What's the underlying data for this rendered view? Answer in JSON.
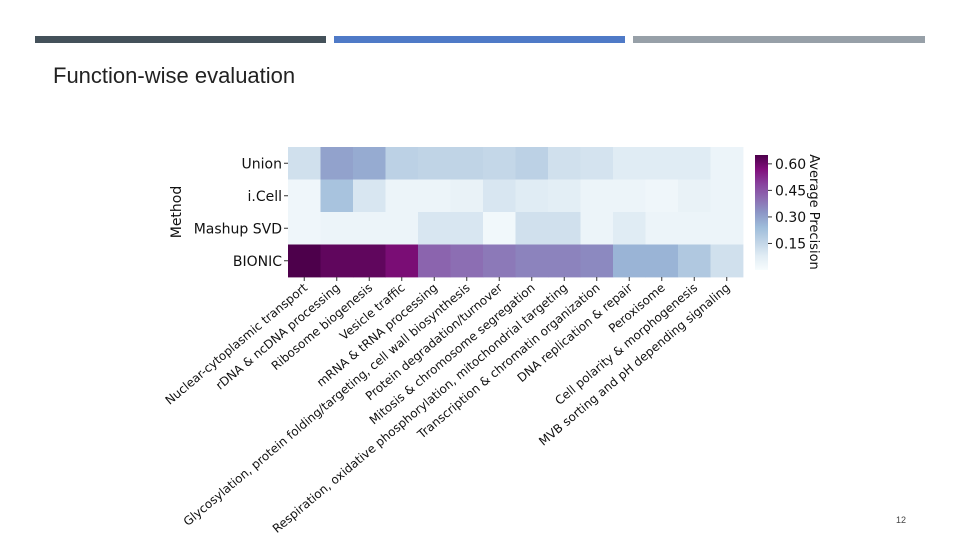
{
  "slide": {
    "title": "Function-wise evaluation",
    "page_number": "12",
    "bar_colors": [
      "#44515a",
      "#4f7ac7",
      "#97a0a8"
    ]
  },
  "chart_data": {
    "type": "heatmap",
    "title": "",
    "ylabel": "Method",
    "xlabel": "",
    "colorbar_label": "Average Precision",
    "colorbar_ticks": [
      "0.60",
      "0.45",
      "0.30",
      "0.15"
    ],
    "colorbar_tick_values": [
      0.6,
      0.45,
      0.3,
      0.15
    ],
    "value_range": [
      0.0,
      0.65
    ],
    "colormap": "BuPu",
    "rows": [
      "Union",
      "i.Cell",
      "Mashup SVD",
      "BIONIC"
    ],
    "columns": [
      "Nuclear-cytoplasmic transport",
      "rDNA & ncDNA processing",
      "Ribosome biogenesis",
      "Vesicle traffic",
      "mRNA & tRNA processing",
      "Glycosylation, protein folding/targeting, cell wall biosynthesis",
      "Protein degradation/turnover",
      "Mitosis & chromosome segregation",
      "Respiration, oxidative phosphorylation, mitochondrial targeting",
      "Transcription & chromatin organization",
      "DNA replication & repair",
      "Peroxisome",
      "Cell polarity & morphogenesis",
      "MVB sorting and pH depending signaling"
    ],
    "values": [
      [
        0.12,
        0.3,
        0.28,
        0.17,
        0.16,
        0.16,
        0.15,
        0.17,
        0.12,
        0.11,
        0.08,
        0.08,
        0.08,
        0.04
      ],
      [
        0.03,
        0.22,
        0.1,
        0.04,
        0.04,
        0.05,
        0.1,
        0.08,
        0.07,
        0.04,
        0.04,
        0.03,
        0.05,
        0.04
      ],
      [
        0.03,
        0.04,
        0.04,
        0.04,
        0.1,
        0.1,
        0.02,
        0.12,
        0.12,
        0.04,
        0.08,
        0.04,
        0.04,
        0.04
      ],
      [
        0.65,
        0.62,
        0.62,
        0.58,
        0.42,
        0.4,
        0.38,
        0.36,
        0.36,
        0.35,
        0.26,
        0.26,
        0.2,
        0.12
      ]
    ]
  }
}
